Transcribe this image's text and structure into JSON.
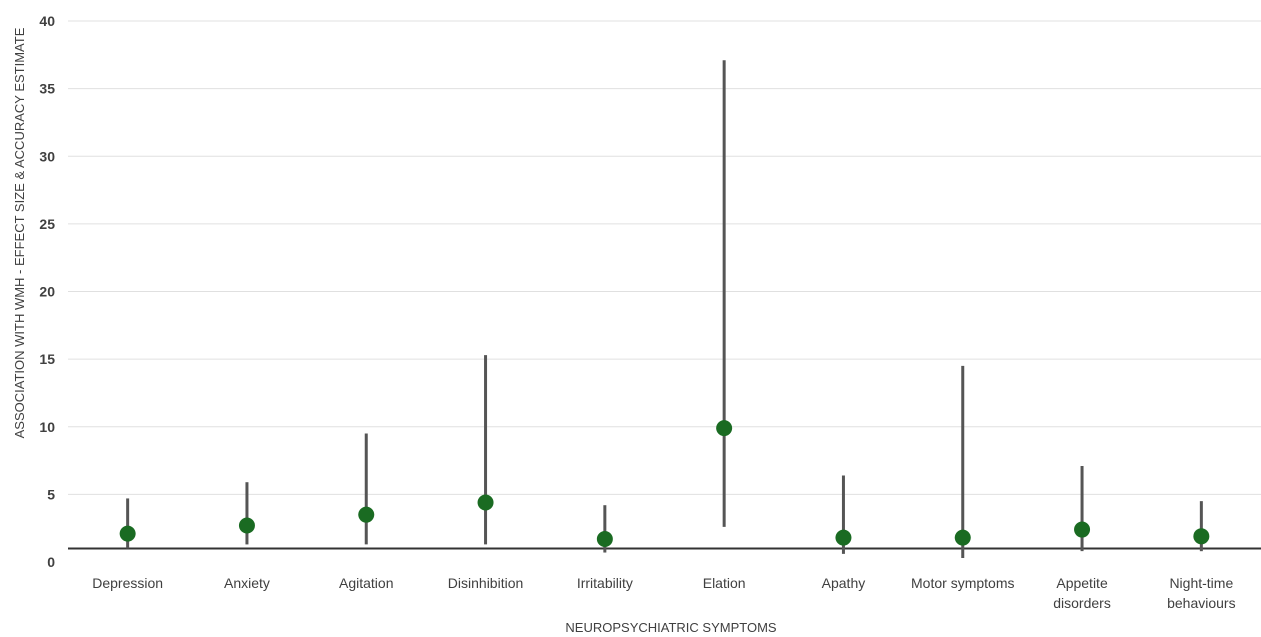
{
  "chart_data": {
    "type": "scatter",
    "title": "",
    "xlabel": "NEUROPSYCHIATRIC SYMPTOMS",
    "ylabel": "ASSOCIATION WITH WMH - EFFECT SIZE & ACCURACY ESTIMATE",
    "ylim": [
      0,
      40
    ],
    "yticks": [
      0,
      5,
      10,
      15,
      20,
      25,
      30,
      35,
      40
    ],
    "grid": true,
    "reference_line": 1,
    "categories": [
      "Depression",
      "Anxiety",
      "Agitation",
      "Disinhibition",
      "Irritability",
      "Elation",
      "Apathy",
      "Motor symptoms",
      "Appetite disorders",
      "Night-time behaviours"
    ],
    "category_lines": [
      [
        "Depression"
      ],
      [
        "Anxiety"
      ],
      [
        "Agitation"
      ],
      [
        "Disinhibition"
      ],
      [
        "Irritability"
      ],
      [
        "Elation"
      ],
      [
        "Apathy"
      ],
      [
        "Motor symptoms"
      ],
      [
        "Appetite",
        "disorders"
      ],
      [
        "Night-time",
        "behaviours"
      ]
    ],
    "estimate": [
      2.1,
      2.7,
      3.5,
      4.4,
      1.7,
      9.9,
      1.8,
      1.8,
      2.4,
      1.9
    ],
    "ci_low": [
      1.0,
      1.3,
      1.3,
      1.3,
      0.7,
      2.6,
      0.6,
      0.3,
      0.8,
      0.8
    ],
    "ci_high": [
      4.7,
      5.9,
      9.5,
      15.3,
      4.2,
      37.1,
      6.4,
      14.5,
      7.1,
      4.5
    ],
    "colors": {
      "point": "#1a6b22",
      "errorbar": "#555555",
      "gridline": "#e0e0e0",
      "reference": "#333333"
    }
  }
}
